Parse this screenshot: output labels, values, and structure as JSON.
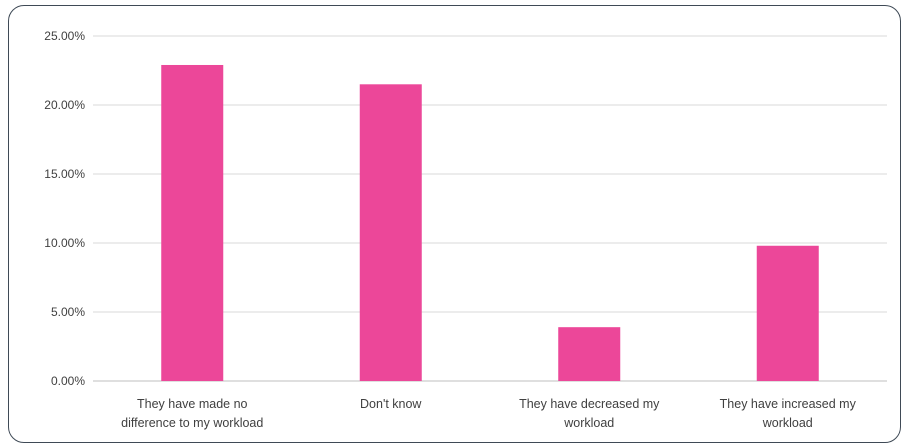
{
  "chart_data": {
    "type": "bar",
    "categories": [
      [
        "They have made no",
        "difference to my workload"
      ],
      [
        "Don't know"
      ],
      [
        "They have decreased my",
        "workload"
      ],
      [
        "They have increased my",
        "workload"
      ]
    ],
    "values": [
      22.9,
      21.5,
      3.9,
      9.8
    ],
    "ylim": [
      0,
      25
    ],
    "yticks": [
      "0.00%",
      "5.00%",
      "10.00%",
      "15.00%",
      "20.00%",
      "25.00%"
    ],
    "ytick_values": [
      0,
      5,
      10,
      15,
      20,
      25
    ],
    "bar_color": "#ec4799",
    "grid": true,
    "title": "",
    "xlabel": "",
    "ylabel": ""
  }
}
